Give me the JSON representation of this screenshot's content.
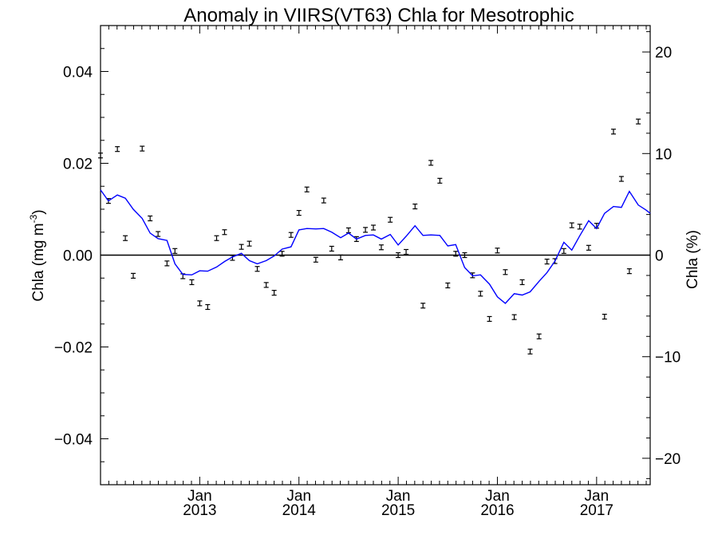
{
  "chart_data": {
    "type": "line",
    "title": "Anomaly in VIIRS(VT63) Chla for Mesotrophic",
    "xlabel": "",
    "ylabel": "Chla (mg m",
    "ylabel_sup": "-3",
    "ylabel_close": ")",
    "y2label": "Chla (%)",
    "ylim": [
      -0.05,
      0.05
    ],
    "y2lim": [
      -22.6,
      22.6
    ],
    "xlim": [
      2012.0,
      2017.54
    ],
    "yticks": [
      -0.04,
      -0.02,
      0.0,
      0.02,
      0.04
    ],
    "ytick_labels": [
      "−0.04",
      "−0.02",
      "0.00",
      "0.02",
      "0.04"
    ],
    "y2ticks": [
      -20,
      -10,
      0,
      10,
      20
    ],
    "y2tick_labels": [
      "−20",
      "−10",
      "0",
      "10",
      "20"
    ],
    "xticks": [
      2013.0,
      2014.0,
      2015.0,
      2016.0,
      2017.0
    ],
    "xtick_month_labels": [
      "Jan",
      "Jan",
      "Jan",
      "Jan",
      "Jan"
    ],
    "xtick_year_labels": [
      "2013",
      "2014",
      "2015",
      "2016",
      "2017"
    ],
    "zero_line": true,
    "grid": false,
    "series": [
      {
        "kind": "monthly_anomaly_errorbars",
        "color": "#000000",
        "x": [
          2012.0,
          2012.08,
          2012.17,
          2012.25,
          2012.33,
          2012.42,
          2012.5,
          2012.58,
          2012.67,
          2012.75,
          2012.83,
          2012.92,
          2013.0,
          2013.08,
          2013.17,
          2013.25,
          2013.33,
          2013.42,
          2013.5,
          2013.58,
          2013.67,
          2013.75,
          2013.83,
          2013.92,
          2014.0,
          2014.08,
          2014.17,
          2014.25,
          2014.33,
          2014.42,
          2014.5,
          2014.58,
          2014.67,
          2014.75,
          2014.83,
          2014.92,
          2015.0,
          2015.08,
          2015.17,
          2015.25,
          2015.33,
          2015.42,
          2015.5,
          2015.58,
          2015.67,
          2015.75,
          2015.83,
          2015.92,
          2016.0,
          2016.08,
          2016.17,
          2016.25,
          2016.33,
          2016.42,
          2016.5,
          2016.58,
          2016.67,
          2016.75,
          2016.83,
          2016.92,
          2017.0,
          2017.08,
          2017.17,
          2017.25,
          2017.33,
          2017.42
        ],
        "values": [
          0.0217,
          0.0118,
          0.0231,
          0.0037,
          -0.0045,
          0.0232,
          0.008,
          0.0046,
          -0.0018,
          0.0009,
          -0.0046,
          -0.0059,
          -0.0105,
          -0.0113,
          0.0037,
          0.005,
          -0.0006,
          0.0018,
          0.0025,
          -0.003,
          -0.0065,
          -0.0082,
          0.0003,
          0.0044,
          0.0092,
          0.0143,
          -0.001,
          0.0119,
          0.0014,
          -0.0005,
          0.0054,
          0.0035,
          0.0055,
          0.006,
          0.0017,
          0.0077,
          0.0,
          0.0007,
          0.0106,
          -0.011,
          0.0201,
          0.0162,
          -0.0066,
          0.0003,
          0.0,
          -0.0044,
          -0.0084,
          -0.0139,
          0.001,
          -0.0037,
          -0.0135,
          -0.0059,
          -0.021,
          -0.0177,
          -0.0014,
          -0.0013,
          0.0009,
          0.0065,
          0.0062,
          0.0016,
          0.0064,
          -0.0134,
          0.0269,
          0.0166,
          -0.0035,
          0.0291
        ]
      },
      {
        "kind": "running_mean",
        "color": "#0000ff",
        "x": [
          2012.0,
          2012.08,
          2012.17,
          2012.25,
          2012.33,
          2012.42,
          2012.5,
          2012.58,
          2012.67,
          2012.75,
          2012.83,
          2012.92,
          2013.0,
          2013.08,
          2013.17,
          2013.25,
          2013.33,
          2013.42,
          2013.5,
          2013.58,
          2013.67,
          2013.75,
          2013.83,
          2013.92,
          2014.0,
          2014.08,
          2014.17,
          2014.25,
          2014.33,
          2014.42,
          2014.5,
          2014.58,
          2014.67,
          2014.75,
          2014.83,
          2014.92,
          2015.0,
          2015.08,
          2015.17,
          2015.25,
          2015.33,
          2015.42,
          2015.5,
          2015.58,
          2015.67,
          2015.75,
          2015.83,
          2015.92,
          2016.0,
          2016.08,
          2016.17,
          2016.25,
          2016.33,
          2016.42,
          2016.5,
          2016.58,
          2016.67,
          2016.75,
          2016.83,
          2016.92,
          2017.0,
          2017.08,
          2017.17,
          2017.25,
          2017.33,
          2017.42,
          2017.5,
          2017.54
        ],
        "values": [
          0.0142,
          0.0118,
          0.0131,
          0.0124,
          0.01,
          0.008,
          0.0048,
          0.0036,
          0.0032,
          -0.0019,
          -0.0042,
          -0.0043,
          -0.0034,
          -0.0035,
          -0.0026,
          -0.0014,
          -0.0004,
          0.0004,
          -0.0012,
          -0.0019,
          -0.0012,
          -0.0002,
          0.0013,
          0.0018,
          0.0055,
          0.0058,
          0.0057,
          0.0058,
          0.005,
          0.0038,
          0.0048,
          0.0035,
          0.0043,
          0.0044,
          0.0035,
          0.0045,
          0.0022,
          0.0041,
          0.0064,
          0.0043,
          0.0044,
          0.0043,
          0.002,
          0.0023,
          -0.0027,
          -0.0045,
          -0.0043,
          -0.0063,
          -0.0091,
          -0.0105,
          -0.0084,
          -0.0087,
          -0.008,
          -0.0057,
          -0.0038,
          -0.0013,
          0.0028,
          0.0011,
          0.0042,
          0.0075,
          0.0058,
          0.0091,
          0.0106,
          0.0104,
          0.0139,
          0.0109,
          0.0098,
          0.0091
        ]
      }
    ]
  }
}
